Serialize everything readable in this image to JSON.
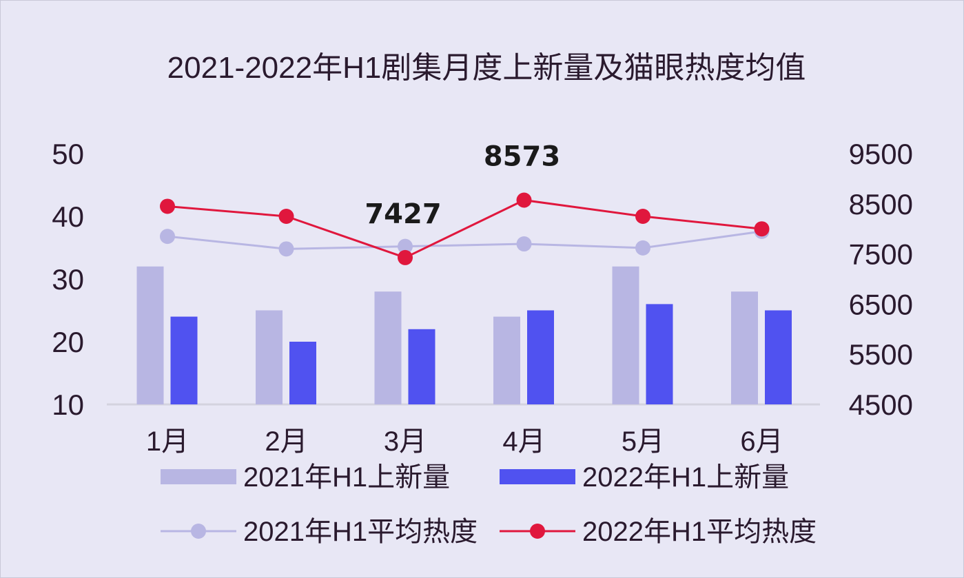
{
  "chart_data": {
    "type": "bar",
    "title": "2021-2022年H1剧集月度上新量及猫眼热度均值",
    "categories": [
      "1月",
      "2月",
      "3月",
      "4月",
      "5月",
      "6月"
    ],
    "y_left": {
      "ticks": [
        "50",
        "40",
        "30",
        "20",
        "10"
      ],
      "ylim": [
        10,
        50
      ]
    },
    "y_right": {
      "ticks": [
        "9500",
        "8500",
        "7500",
        "6500",
        "5500",
        "4500"
      ],
      "ylim": [
        4500,
        9500
      ]
    },
    "bar_series": [
      {
        "name": "2021年H1上新量",
        "values": [
          32,
          25,
          28,
          24,
          32,
          28
        ],
        "color": "#b8b6e3",
        "axis": "left"
      },
      {
        "name": "2022年H1上新量",
        "values": [
          24,
          20,
          22,
          25,
          26,
          25
        ],
        "color": "#5052f0",
        "axis": "left"
      }
    ],
    "line_series": [
      {
        "name": "2021年H1平均热度",
        "values": [
          7850,
          7600,
          7650,
          7700,
          7620,
          7950
        ],
        "color": "#b8b6e3",
        "axis": "right"
      },
      {
        "name": "2022年H1平均热度",
        "values": [
          8450,
          8250,
          7427,
          8573,
          8250,
          8000
        ],
        "color": "#e0173d",
        "axis": "right"
      }
    ],
    "annotations": [
      {
        "category_index": 2,
        "series": "2022年H1平均热度",
        "text": "7427"
      },
      {
        "category_index": 3,
        "series": "2022年H1平均热度",
        "text": "8573"
      }
    ],
    "grid": false,
    "legend_position": "bottom"
  }
}
